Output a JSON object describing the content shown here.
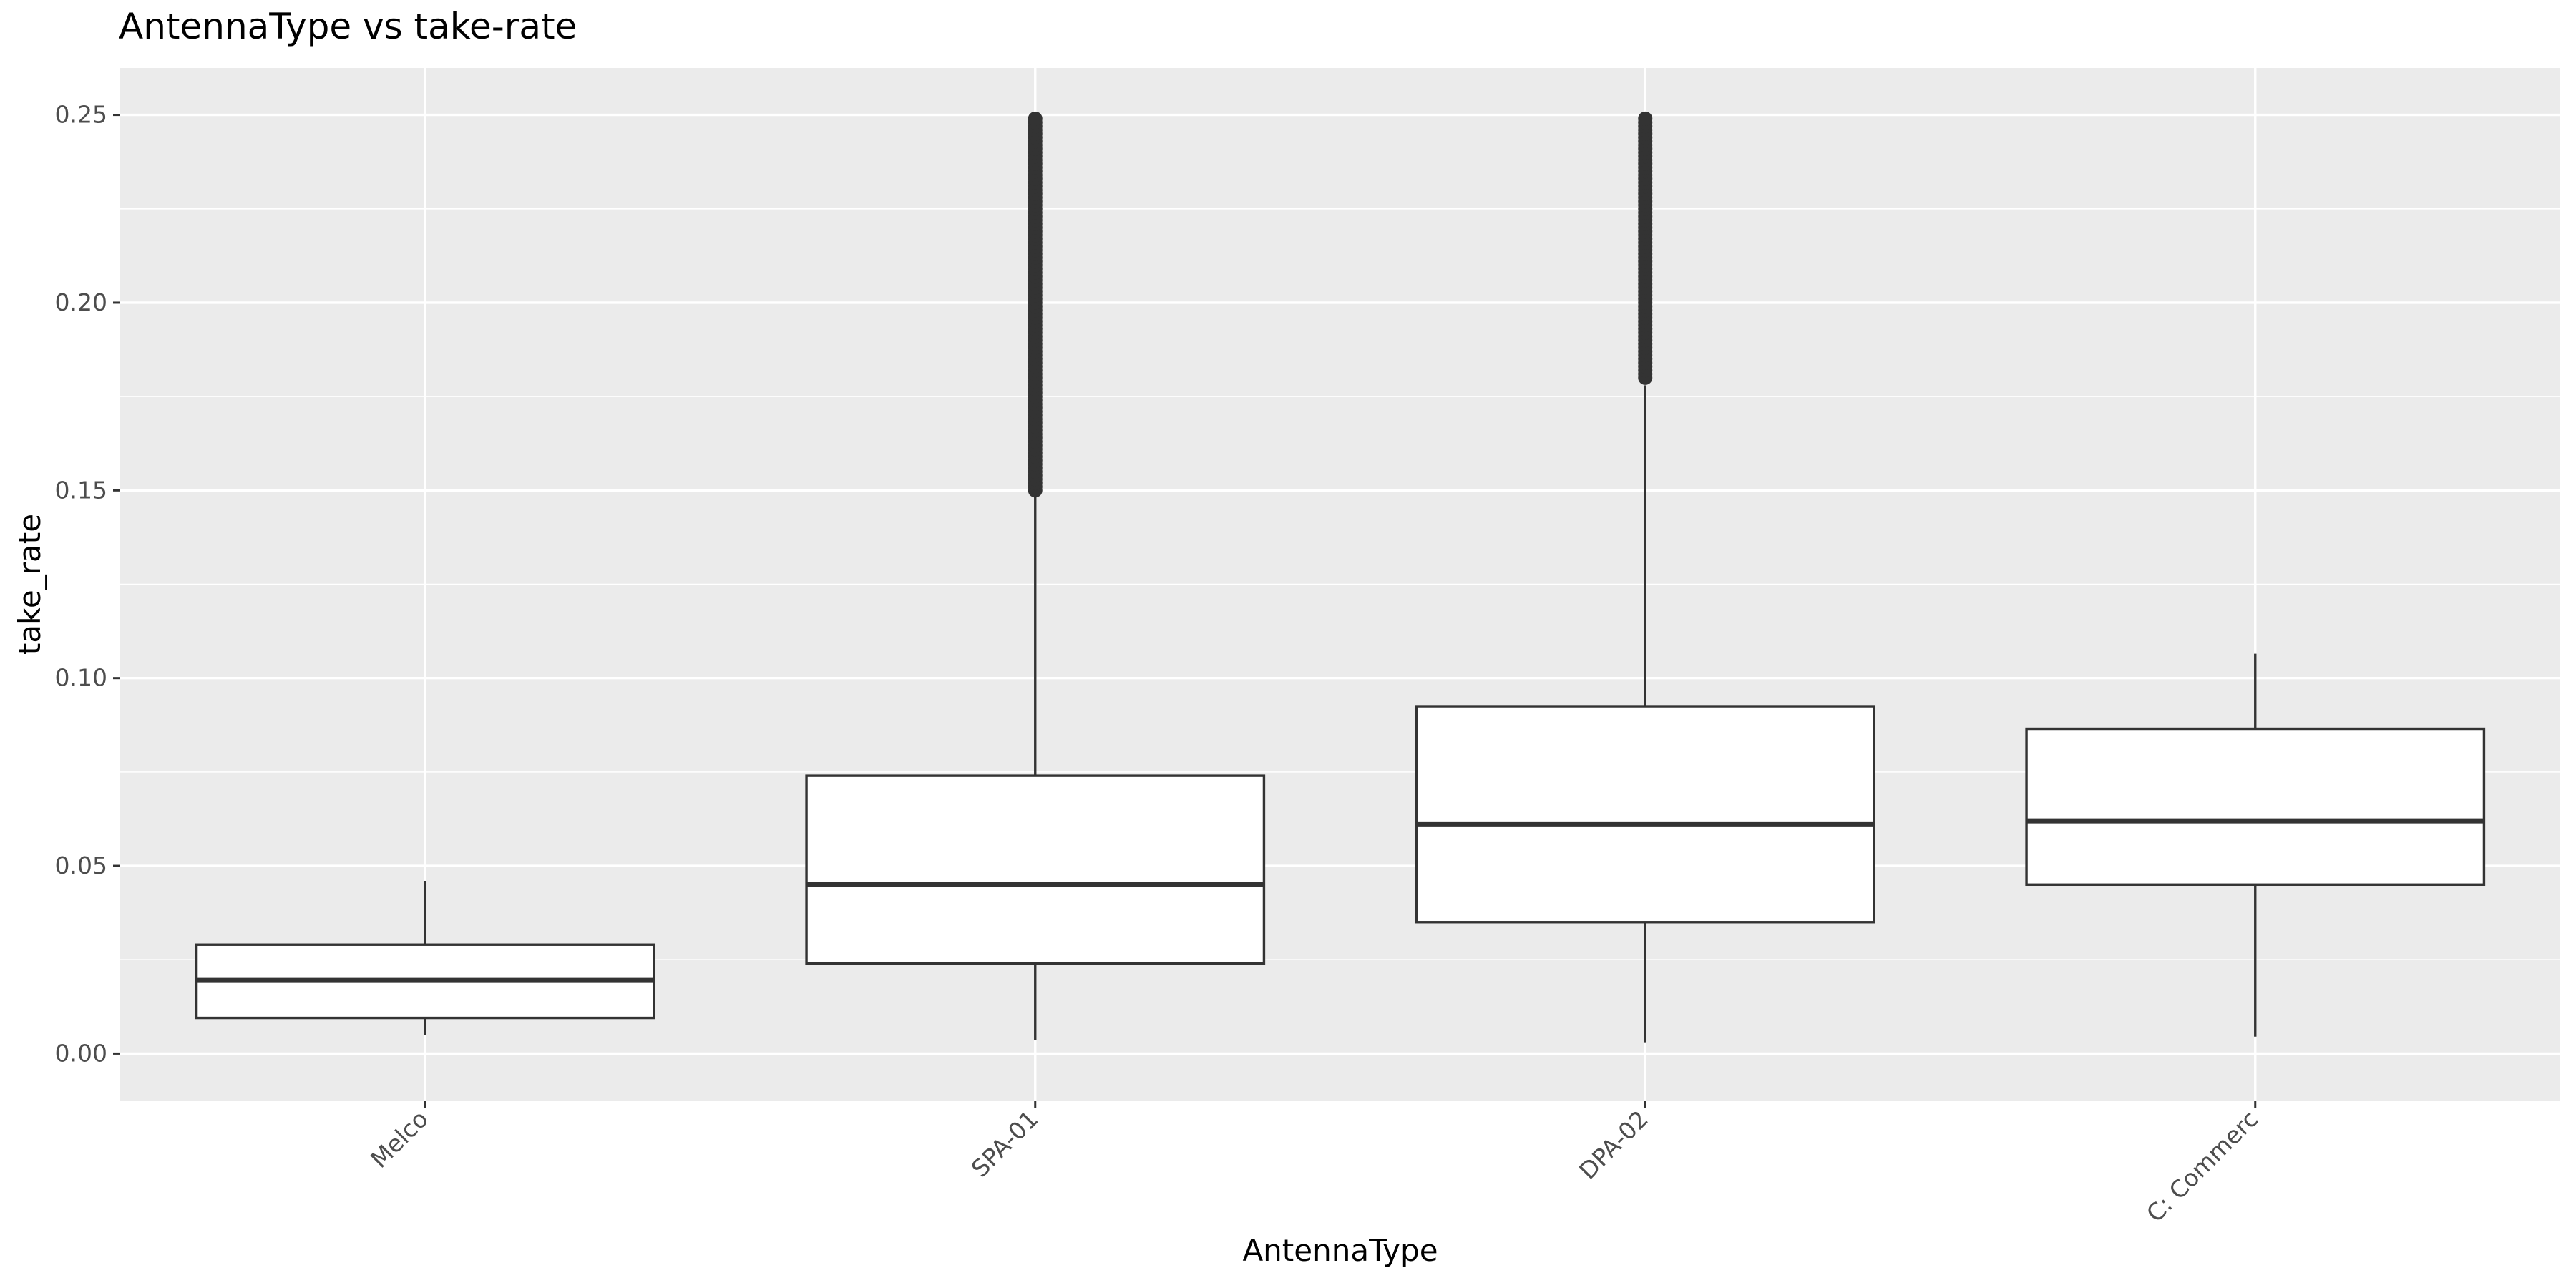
{
  "chart_data": {
    "type": "box",
    "title": "AntennaType vs take-rate",
    "xlabel": "AntennaType",
    "ylabel": "take_rate",
    "ylim": [
      -0.0125,
      0.2625
    ],
    "y_ticks": [
      0.0,
      0.05,
      0.1,
      0.15,
      0.2,
      0.25
    ],
    "y_tick_labels": [
      "0.00",
      "0.05",
      "0.10",
      "0.15",
      "0.20",
      "0.25"
    ],
    "grid": true,
    "categories": [
      "Melco",
      "SPA-01",
      "DPA-02",
      "C: Commerc"
    ],
    "boxes": [
      {
        "category": "Melco",
        "whisker_low": 0.005,
        "q1": 0.0095,
        "median": 0.0195,
        "q3": 0.029,
        "whisker_high": 0.046,
        "outlier_range": null
      },
      {
        "category": "SPA-01",
        "whisker_low": 0.0035,
        "q1": 0.024,
        "median": 0.045,
        "q3": 0.074,
        "whisker_high": 0.149,
        "outlier_range": [
          0.15,
          0.249
        ]
      },
      {
        "category": "DPA-02",
        "whisker_low": 0.003,
        "q1": 0.035,
        "median": 0.061,
        "q3": 0.0925,
        "whisker_high": 0.178,
        "outlier_range": [
          0.18,
          0.249
        ]
      },
      {
        "category": "C: Commerc",
        "whisker_low": 0.0045,
        "q1": 0.045,
        "median": 0.062,
        "q3": 0.0865,
        "whisker_high": 0.1065,
        "outlier_range": null
      }
    ],
    "colors": {
      "panel": "#ebebeb",
      "grid": "#ffffff",
      "box_fill": "#ffffff",
      "box_stroke": "#333333",
      "outlier": "#333333"
    }
  }
}
